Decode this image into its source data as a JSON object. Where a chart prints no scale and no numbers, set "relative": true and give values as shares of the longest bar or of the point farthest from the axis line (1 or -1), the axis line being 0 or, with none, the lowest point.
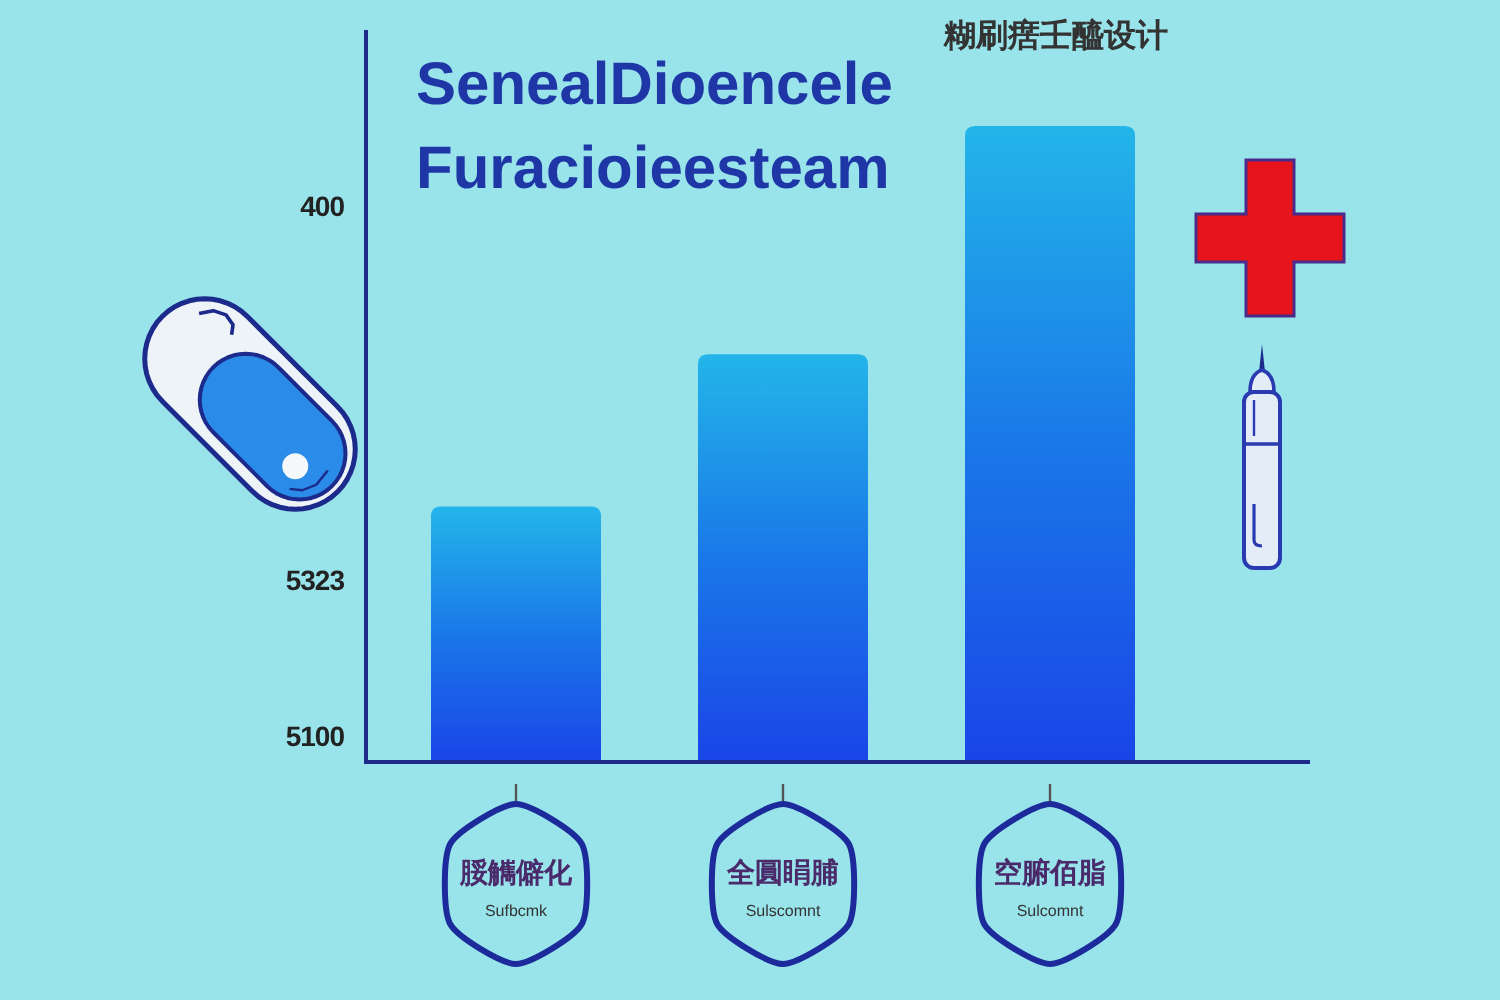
{
  "chart_data": {
    "type": "bar",
    "title": "SenealDioencele Furacioieesteam",
    "subtitle": "糊刷瘔壬醯设计",
    "categories": [
      "脮觽僻化\nSufbcmk",
      "全圓睊脯\nSulscomnt",
      "空腑佰脂\nSulcomnt"
    ],
    "values": [
      0.4,
      0.64,
      1
    ],
    "color": "#1a78e8",
    "relative": true,
    "annotations": [
      "400",
      "5323",
      "5100"
    ]
  }
}
